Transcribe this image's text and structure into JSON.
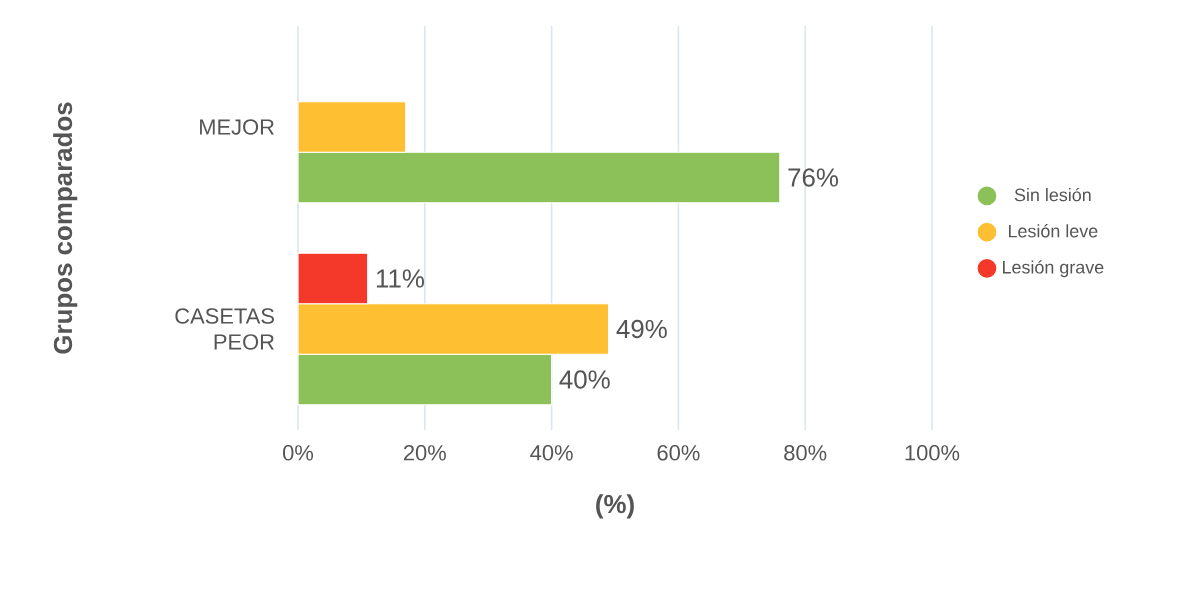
{
  "chart_data": {
    "type": "bar",
    "orientation": "horizontal",
    "ylabel": "Grupos comparados",
    "xlabel": "(%)",
    "categories": [
      "MEJOR",
      "CASETAS PEOR"
    ],
    "series": [
      {
        "name": "Sin lesión",
        "color": "#8bc158",
        "values": [
          76,
          40
        ],
        "value_labels": [
          "76%",
          "40%"
        ]
      },
      {
        "name": "Lesión leve",
        "color": "#fec032",
        "values": [
          17,
          49
        ],
        "value_labels": [
          null,
          "49%"
        ]
      },
      {
        "name": "Lesión grave",
        "color": "#f4392b",
        "values": [
          null,
          11
        ],
        "value_labels": [
          null,
          "11%"
        ]
      }
    ],
    "xlim": [
      0,
      100
    ],
    "xticks": [
      {
        "value": 0,
        "label": "0%"
      },
      {
        "value": 20,
        "label": "20%"
      },
      {
        "value": 40,
        "label": "40%"
      },
      {
        "value": 60,
        "label": "60%"
      },
      {
        "value": 80,
        "label": "80%"
      },
      {
        "value": 100,
        "label": "100%"
      }
    ],
    "grid": "x",
    "legend": "right"
  }
}
